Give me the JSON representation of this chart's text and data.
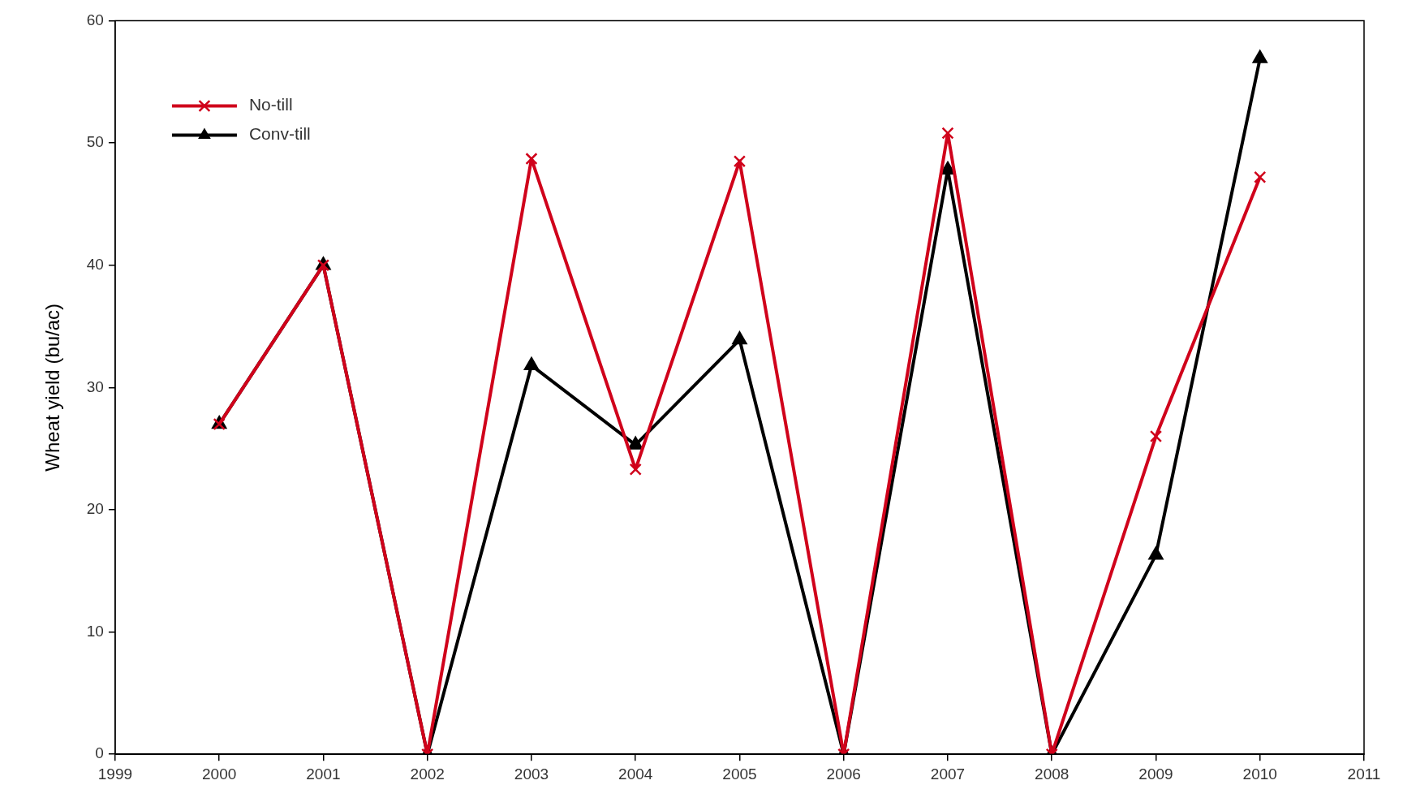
{
  "chart_data": {
    "type": "line",
    "ylabel": "Wheat yield (bu/ac)",
    "x": [
      2000,
      2001,
      2002,
      2003,
      2004,
      2005,
      2006,
      2007,
      2008,
      2009,
      2010
    ],
    "series": [
      {
        "name": "No-till",
        "color": "#d0021b",
        "marker": "cross",
        "values": [
          27,
          40,
          0,
          48.7,
          23.3,
          48.5,
          0,
          50.8,
          0,
          26.0,
          47.2
        ]
      },
      {
        "name": "Conv-till",
        "color": "#000000",
        "marker": "triangle",
        "values": [
          27,
          40,
          0,
          31.8,
          25.3,
          33.9,
          0,
          47.8,
          0,
          16.3,
          56.9
        ]
      }
    ],
    "xlim": [
      1999,
      2011
    ],
    "xticks": [
      1999,
      2000,
      2001,
      2002,
      2003,
      2004,
      2005,
      2006,
      2007,
      2008,
      2009,
      2010,
      2011
    ],
    "ylim": [
      0,
      60
    ],
    "yticks": [
      0,
      10,
      20,
      30,
      40,
      50,
      60
    ],
    "grid": false,
    "legend": "top left",
    "line_style": "solid"
  }
}
